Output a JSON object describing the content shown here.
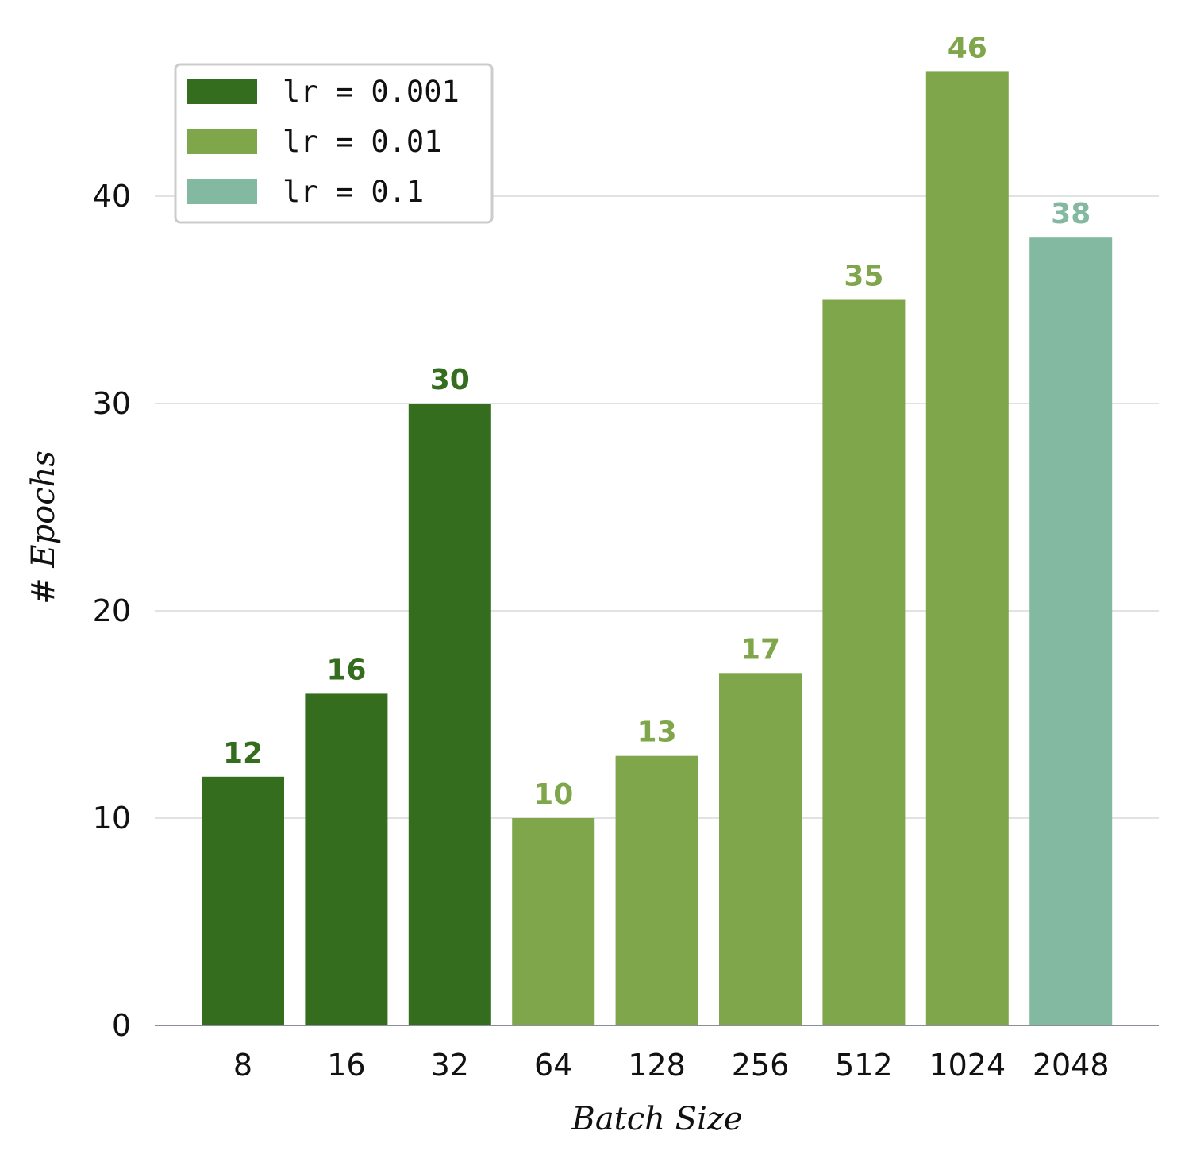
{
  "chart_data": {
    "type": "bar",
    "categories": [
      "8",
      "16",
      "32",
      "64",
      "128",
      "256",
      "512",
      "1024",
      "2048"
    ],
    "values": [
      12,
      16,
      30,
      10,
      13,
      17,
      35,
      46,
      38
    ],
    "bar_groups": [
      "lr = 0.001",
      "lr = 0.001",
      "lr = 0.001",
      "lr = 0.01",
      "lr = 0.01",
      "lr = 0.01",
      "lr = 0.01",
      "lr = 0.01",
      "lr = 0.1"
    ],
    "series": [
      {
        "name": "lr = 0.001",
        "color": "#356d1f"
      },
      {
        "name": "lr = 0.01",
        "color": "#80a64c"
      },
      {
        "name": "lr = 0.1",
        "color": "#83b9a0"
      }
    ],
    "xlabel": "Batch Size",
    "ylabel": "# Epochs",
    "ylim": [
      0,
      48
    ],
    "yticks": [
      0,
      10,
      20,
      30,
      40
    ],
    "grid": "horizontal",
    "legend_position": "top-left",
    "data_labels": true
  }
}
